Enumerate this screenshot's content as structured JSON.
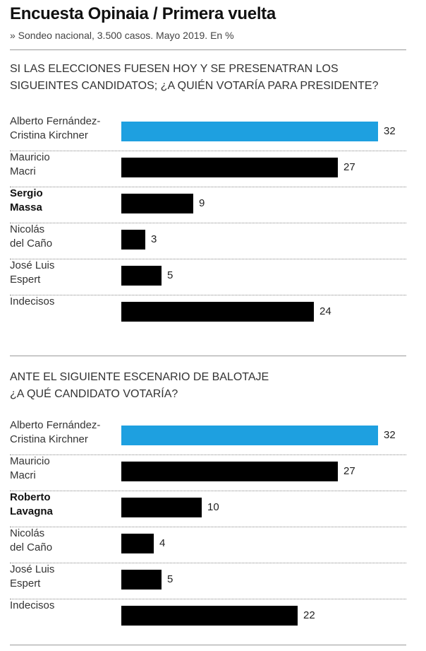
{
  "header": {
    "title": "Encuesta Opinaia / Primera vuelta",
    "subtitle": "» Sondeo nacional, 3.500 casos. Mayo 2019. En %"
  },
  "colors": {
    "highlight": "#1ea0e0",
    "bar": "#000000"
  },
  "chart_data": [
    {
      "type": "bar",
      "orientation": "horizontal",
      "title": "SI LAS ELECCIONES FUESEN HOY Y SE PRESENATRAN LOS SIGUEINTES CANDIDATOS; ¿A QUIÉN  VOTARÍA PARA PRESIDENTE?",
      "title_lines": [
        "SI LAS ELECCIONES FUESEN HOY Y SE PRESENATRAN LOS",
        "SIGUEINTES CANDIDATOS; ¿A QUIÉN  VOTARÍA PARA PRESIDENTE?"
      ],
      "categories": [
        [
          "Alberto Fernández-",
          "Cristina Kirchner"
        ],
        [
          "Mauricio",
          "Macri"
        ],
        [
          "Sergio",
          "Massa"
        ],
        [
          "Nicolás",
          "del Caño"
        ],
        [
          "José Luis",
          "Espert"
        ],
        [
          "Indecisos"
        ]
      ],
      "values": [
        32,
        27,
        9,
        3,
        5,
        24
      ],
      "highlight_index": 0,
      "bold_index": 2,
      "xlim": [
        0,
        32
      ],
      "grid": false
    },
    {
      "type": "bar",
      "orientation": "horizontal",
      "title": "ANTE EL SIGUIENTE ESCENARIO DE BALOTAJE ¿A QUÉ CANDIDATO VOTARÍA?",
      "title_lines": [
        "ANTE EL SIGUIENTE ESCENARIO DE BALOTAJE",
        "¿A QUÉ CANDIDATO VOTARÍA?"
      ],
      "categories": [
        [
          "Alberto Fernández-",
          "Cristina Kirchner"
        ],
        [
          "Mauricio",
          "Macri"
        ],
        [
          "Roberto",
          "Lavagna"
        ],
        [
          "Nicolás",
          "del Caño"
        ],
        [
          "José Luis",
          "Espert"
        ],
        [
          "Indecisos"
        ]
      ],
      "values": [
        32,
        27,
        10,
        4,
        5,
        22
      ],
      "highlight_index": 0,
      "bold_index": 2,
      "xlim": [
        0,
        32
      ],
      "grid": false
    }
  ]
}
